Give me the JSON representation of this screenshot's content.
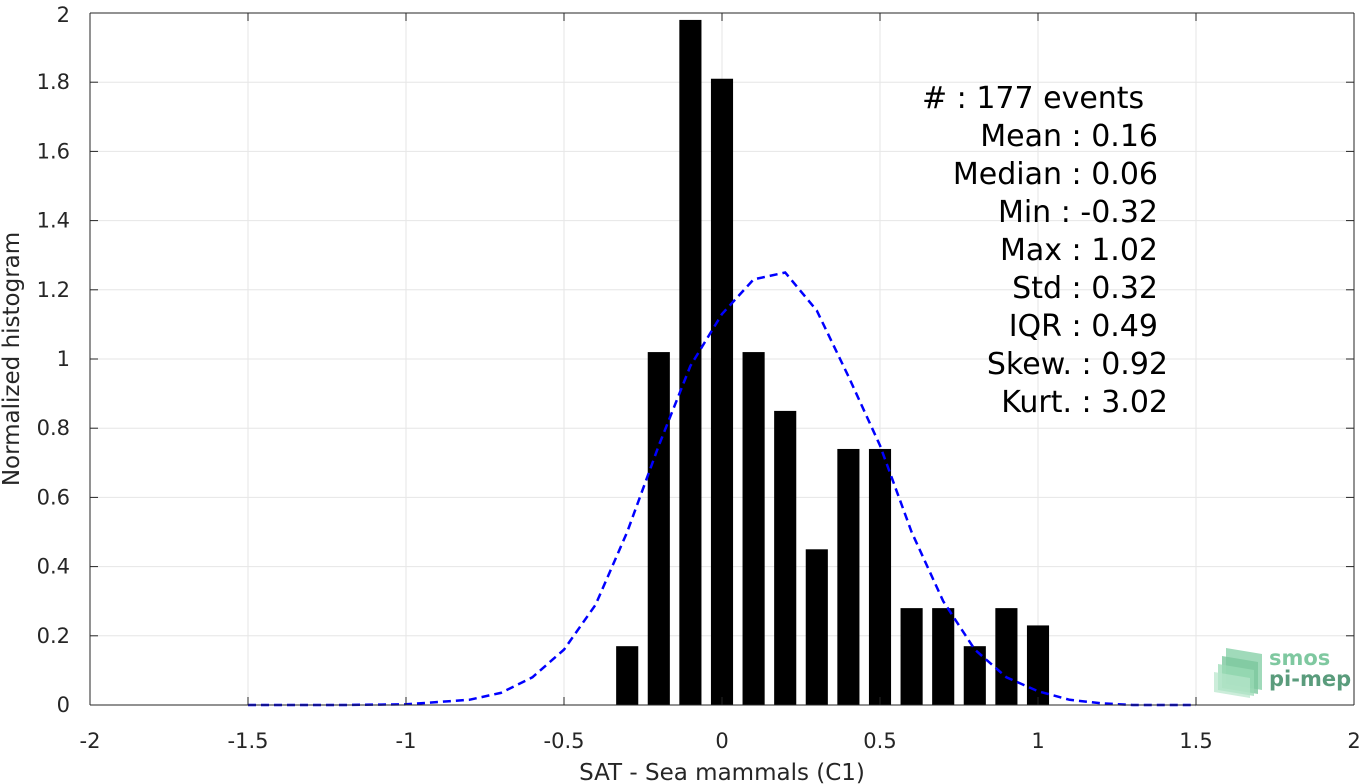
{
  "chart_data": {
    "type": "bar",
    "xlabel": "SAT - Sea mammals (C1)",
    "ylabel": "Normalized histogram",
    "xlim": [
      -2,
      2
    ],
    "ylim": [
      0,
      2
    ],
    "xticks": [
      -2,
      -1.5,
      -1,
      -0.5,
      0,
      0.5,
      1,
      1.5,
      2
    ],
    "xtick_labels": [
      "-2",
      "-1.5",
      "-1",
      "-0.5",
      "0",
      "0.5",
      "1",
      "1.5",
      "2"
    ],
    "yticks": [
      0,
      0.2,
      0.4,
      0.6,
      0.8,
      1,
      1.2,
      1.4,
      1.6,
      1.8,
      2
    ],
    "ytick_labels": [
      "0",
      "0.2",
      "0.4",
      "0.6",
      "0.8",
      "1",
      "1.2",
      "1.4",
      "1.6",
      "1.8",
      "2"
    ],
    "grid": true,
    "bar_color": "#000000",
    "bar_width": 0.07,
    "bars": {
      "x": [
        -0.3,
        -0.2,
        -0.1,
        0.0,
        0.1,
        0.2,
        0.3,
        0.4,
        0.5,
        0.6,
        0.7,
        0.8,
        0.9,
        1.0
      ],
      "values": [
        0.17,
        1.02,
        1.98,
        1.81,
        1.02,
        0.85,
        0.45,
        0.74,
        0.74,
        0.28,
        0.28,
        0.17,
        0.28,
        0.23
      ]
    },
    "fit_curve": {
      "style": "dashed",
      "color": "#0000ff",
      "x": [
        -1.5,
        -1.2,
        -1.0,
        -0.8,
        -0.7,
        -0.6,
        -0.5,
        -0.4,
        -0.3,
        -0.2,
        -0.1,
        0.0,
        0.1,
        0.2,
        0.3,
        0.4,
        0.5,
        0.6,
        0.7,
        0.8,
        0.9,
        1.0,
        1.1,
        1.2,
        1.3,
        1.5
      ],
      "y": [
        0.0,
        0.0,
        0.002,
        0.015,
        0.035,
        0.08,
        0.16,
        0.29,
        0.5,
        0.75,
        0.98,
        1.13,
        1.23,
        1.25,
        1.14,
        0.95,
        0.75,
        0.5,
        0.3,
        0.16,
        0.08,
        0.04,
        0.015,
        0.005,
        0.0,
        0.0
      ]
    },
    "stats": [
      {
        "label": "#  : 177 events",
        "align": "start"
      },
      {
        "label": "Mean : 0.16",
        "align": "end-short"
      },
      {
        "label": "Median : 0.06",
        "align": "end-short"
      },
      {
        "label": "Min : -0.32",
        "align": "end-short"
      },
      {
        "label": "Max : 1.02",
        "align": "end-short"
      },
      {
        "label": "Std : 0.32",
        "align": "end-short"
      },
      {
        "label": "IQR : 0.49",
        "align": "end-short"
      },
      {
        "label": "Skew. : 0.92",
        "align": "end-long"
      },
      {
        "label": "Kurt. : 3.02",
        "align": "end-long"
      }
    ]
  },
  "logo": {
    "line1": "smos",
    "line2": "pi-mep",
    "color1": "#7fc8a0",
    "color2": "#5a9c7c"
  }
}
